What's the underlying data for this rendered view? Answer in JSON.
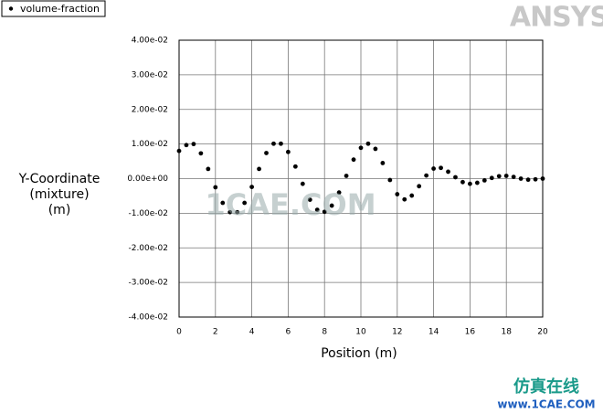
{
  "chart_data": {
    "type": "scatter",
    "legend": "volume-fraction",
    "logo": "ANSYS",
    "watermarks": [
      "1CAE.COM",
      "仿真在线",
      "www.1CAE.COM"
    ],
    "x_label": "Position (m)",
    "y_label": [
      "Y-Coordinate",
      "(mixture)",
      "(m)"
    ],
    "color": "#000000",
    "grid": true,
    "xlim": [
      0,
      20
    ],
    "xticks": [
      0,
      2,
      4,
      6,
      8,
      10,
      12,
      14,
      16,
      18,
      20
    ],
    "ylim": [
      -0.04,
      0.04
    ],
    "yticks": [
      {
        "value": 0.04,
        "label": "4.00e-02"
      },
      {
        "value": 0.03,
        "label": "3.00e-02"
      },
      {
        "value": 0.02,
        "label": "2.00e-02"
      },
      {
        "value": 0.01,
        "label": "1.00e-02"
      },
      {
        "value": 0,
        "label": "0.00e+00"
      },
      {
        "value": -0.01,
        "label": "-1.00e-02"
      },
      {
        "value": -0.02,
        "label": "-2.00e-02"
      },
      {
        "value": -0.03,
        "label": "-3.00e-02"
      },
      {
        "value": -0.04,
        "label": "-4.00e-02"
      }
    ],
    "x": [
      0,
      0.4,
      0.8,
      1.2,
      1.6,
      2.0,
      2.4,
      2.8,
      3.2,
      3.6,
      4.0,
      4.4,
      4.8,
      5.2,
      5.6,
      6.0,
      6.4,
      6.8,
      7.2,
      7.6,
      8.0,
      8.4,
      8.8,
      9.2,
      9.6,
      10.0,
      10.4,
      10.8,
      11.2,
      11.6,
      12.0,
      12.4,
      12.8,
      13.2,
      13.6,
      14.0,
      14.4,
      14.8,
      15.2,
      15.6,
      16.0,
      16.4,
      16.8,
      17.2,
      17.6,
      18.0,
      18.4,
      18.8,
      19.2,
      19.6,
      20.0
    ],
    "values": [
      0.008,
      0.0097,
      0.01,
      0.0073,
      0.0028,
      -0.0025,
      -0.007,
      -0.0097,
      -0.0097,
      -0.007,
      -0.0024,
      0.0028,
      0.0074,
      0.0101,
      0.0101,
      0.0077,
      0.0035,
      -0.0015,
      -0.0061,
      -0.009,
      -0.0096,
      -0.0078,
      -0.004,
      0.0008,
      0.0055,
      0.0089,
      0.0101,
      0.0086,
      0.0045,
      -0.0004,
      -0.0045,
      -0.006,
      -0.0049,
      -0.0022,
      0.0009,
      0.0029,
      0.0031,
      0.002,
      0.0004,
      -0.001,
      -0.0015,
      -0.0012,
      -0.0005,
      0.0002,
      0.0007,
      0.0008,
      0.0005,
      0.0,
      -0.0003,
      -0.0002,
      0.0
    ]
  }
}
